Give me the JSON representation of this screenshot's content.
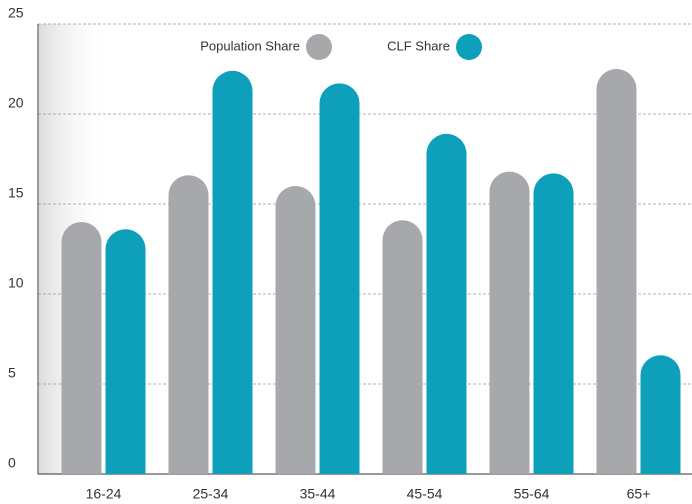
{
  "chart_data": {
    "type": "bar",
    "categories": [
      "16-24",
      "25-34",
      "35-44",
      "45-54",
      "55-64",
      "65+"
    ],
    "series": [
      {
        "name": "Population Share",
        "color": "#a7a8ab",
        "values": [
          14.0,
          16.6,
          16.0,
          14.1,
          16.8,
          22.5
        ]
      },
      {
        "name": "CLF Share",
        "color": "#0e9fba",
        "values": [
          13.6,
          22.4,
          21.7,
          18.9,
          16.7,
          6.6
        ]
      }
    ],
    "ylim": [
      0,
      25
    ],
    "yticks": [
      0,
      5,
      10,
      15,
      20,
      25
    ],
    "grid": true
  }
}
